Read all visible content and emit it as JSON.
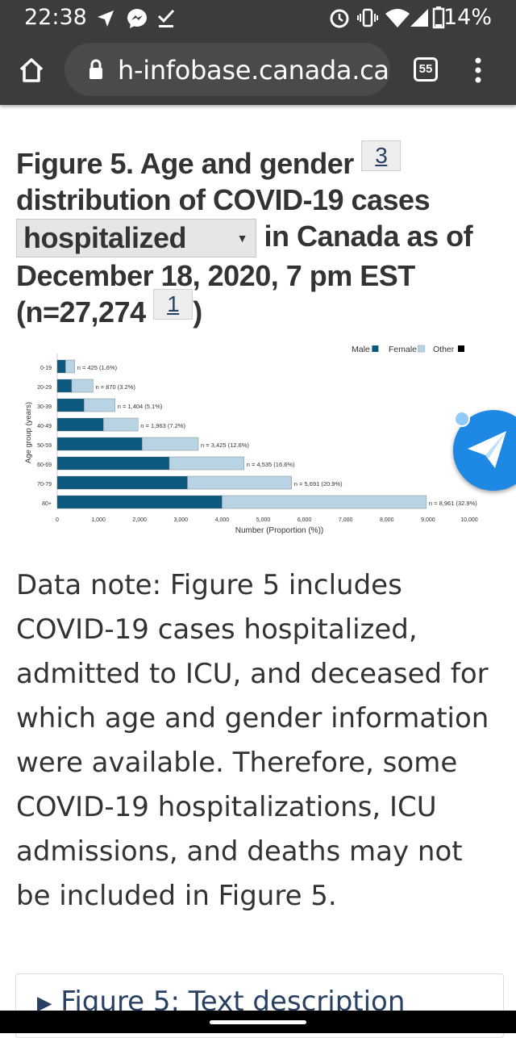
{
  "status_bar": {
    "time": "22:38",
    "battery": "14%"
  },
  "browser": {
    "url": "h-infobase.canada.ca",
    "tab_count": "55"
  },
  "figure": {
    "title_part1": "Figure 5. Age and gender",
    "title_part2": "distribution of COVID-19 cases",
    "footnote_1": "3",
    "select_value": "hospitalized",
    "title_part3": "in Canada as of",
    "title_part4": "December 18, 2020, 7 pm EST",
    "title_part5": "(n=27,274",
    "footnote_2": "1",
    "title_part6": ")"
  },
  "chart_data": {
    "type": "bar",
    "orientation": "horizontal",
    "stacked": true,
    "categories": [
      "0-19",
      "20-29",
      "30-39",
      "40-49",
      "50-59",
      "60-69",
      "70-79",
      "80+"
    ],
    "series": [
      {
        "name": "Male",
        "color": "#0b5a7e",
        "values": [
          200,
          350,
          650,
          1120,
          2060,
          2720,
          3160,
          4000
        ]
      },
      {
        "name": "Female",
        "color": "#b8d3e4",
        "values": [
          225,
          520,
          754,
          843,
          1365,
          1815,
          2531,
          4961
        ]
      },
      {
        "name": "Other",
        "color": "#000000",
        "values": [
          0,
          0,
          0,
          0,
          0,
          0,
          0,
          0
        ]
      }
    ],
    "data_labels": [
      "n = 425 (1.6%)",
      "n = 870 (3.2%)",
      "n = 1,404 (5.1%)",
      "n = 1,963 (7.2%)",
      "n = 3,425 (12.6%)",
      "n = 4,535 (16.6%)",
      "n = 5,691 (20.9%)",
      "n = 8,961 (32.9%)"
    ],
    "x_ticks": [
      "0",
      "1,000",
      "2,000",
      "3,000",
      "4,000",
      "5,000",
      "6,000",
      "7,000",
      "8,000",
      "9,000",
      "10,000"
    ],
    "xlim": [
      0,
      10000
    ],
    "xlabel": "Number (Proportion (%))",
    "ylabel": "Age group (years)",
    "legend_position": "top-right",
    "grid": false
  },
  "note": {
    "text": "Data note: Figure 5 includes COVID-19 cases hospitalized, admitted to ICU, and deceased for which age and gender information were available. Therefore, some COVID-19 hospitalizations, ICU admissions, and deaths may not be included in Figure 5."
  },
  "details": {
    "summary_label": "Figure 5: Text description"
  },
  "icons": {
    "status": [
      "navigation-arrow-icon",
      "messenger-icon",
      "download-done-icon",
      "alarm-icon",
      "vibrate-icon",
      "wifi-icon",
      "signal-icon",
      "battery-icon"
    ],
    "browser": [
      "home-icon",
      "lock-icon",
      "tabs-icon",
      "overflow-menu-icon"
    ],
    "floating": "paper-plane-icon"
  }
}
